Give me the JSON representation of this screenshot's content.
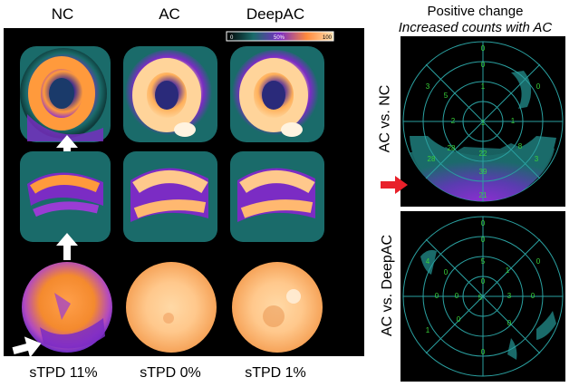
{
  "columns": [
    "NC",
    "AC",
    "DeepAC"
  ],
  "colorbar": {
    "min": "0",
    "mid": "50%",
    "max": "100"
  },
  "stpd": [
    "sTPD 11%",
    "sTPD 0%",
    "sTPD 1%"
  ],
  "right": {
    "title": "Positive change",
    "subtitle": "Increased counts with AC",
    "top_label": "AC vs. NC",
    "bottom_label": "AC vs. DeepAC",
    "top_numbers": [
      "0",
      "3",
      "0",
      "0",
      "5",
      "1",
      "2",
      "1",
      "1",
      "28",
      "22",
      "8",
      "28",
      "39",
      "3",
      "21"
    ],
    "bottom_numbers": [
      "0",
      "4",
      "0",
      "0",
      "0",
      "5",
      "1",
      "0",
      "0",
      "0",
      "5",
      "3",
      "0",
      "1",
      "0",
      "0",
      "0"
    ]
  },
  "colors": {
    "hot": "#ffa03c",
    "mid": "#7b2cc4",
    "low": "#1a6b6a"
  }
}
